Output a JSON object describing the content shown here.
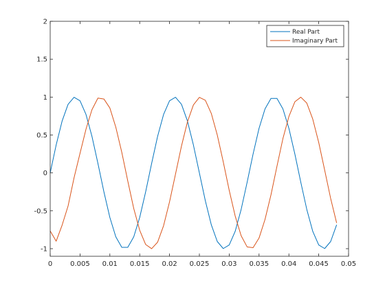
{
  "chart_data": {
    "type": "line",
    "title": "",
    "xlabel": "",
    "ylabel": "",
    "xlim": [
      0,
      0.05
    ],
    "ylim": [
      -1.1,
      2
    ],
    "x_ticks": [
      0,
      0.005,
      0.01,
      0.015,
      0.02,
      0.025,
      0.03,
      0.035,
      0.04,
      0.045,
      0.05
    ],
    "x_tick_labels": [
      "0",
      "0.005",
      "0.01",
      "0.015",
      "0.02",
      "0.025",
      "0.03",
      "0.035",
      "0.04",
      "0.045",
      "0.05"
    ],
    "y_ticks": [
      -1,
      -0.5,
      0,
      0.5,
      1,
      1.5,
      2
    ],
    "y_tick_labels": [
      "-1",
      "-0.5",
      "0",
      "0.5",
      "1",
      "1.5",
      "2"
    ],
    "grid": false,
    "legend_position": "top-right",
    "series": [
      {
        "name": "Real Part",
        "color": "#0072BD",
        "x": [
          0,
          0.001,
          0.002,
          0.003,
          0.004,
          0.005,
          0.006,
          0.007,
          0.008,
          0.009,
          0.01,
          0.011,
          0.012,
          0.013,
          0.014,
          0.015,
          0.016,
          0.017,
          0.018,
          0.019,
          0.02,
          0.021,
          0.022,
          0.023,
          0.024,
          0.025,
          0.026,
          0.027,
          0.028,
          0.029,
          0.03,
          0.031,
          0.032,
          0.033,
          0.034,
          0.035,
          0.036,
          0.037,
          0.038,
          0.039,
          0.04,
          0.041,
          0.042,
          0.043,
          0.044,
          0.045,
          0.046,
          0.047,
          0.048
        ],
        "y": [
          0,
          0.368,
          0.685,
          0.905,
          0.998,
          0.951,
          0.771,
          0.482,
          0.125,
          -0.249,
          -0.588,
          -0.844,
          -0.982,
          -0.982,
          -0.844,
          -0.588,
          -0.249,
          0.125,
          0.482,
          0.771,
          0.951,
          0.998,
          0.905,
          0.685,
          0.368,
          0,
          -0.368,
          -0.685,
          -0.905,
          -0.998,
          -0.951,
          -0.771,
          -0.482,
          -0.125,
          0.249,
          0.588,
          0.844,
          0.982,
          0.982,
          0.844,
          0.588,
          0.249,
          -0.125,
          -0.482,
          -0.771,
          -0.951,
          -0.998,
          -0.905,
          -0.685
        ]
      },
      {
        "name": "Imaginary Part",
        "color": "#D95319",
        "x": [
          0,
          0.001,
          0.002,
          0.003,
          0.004,
          0.005,
          0.006,
          0.007,
          0.008,
          0.009,
          0.01,
          0.011,
          0.012,
          0.013,
          0.014,
          0.015,
          0.016,
          0.017,
          0.018,
          0.019,
          0.02,
          0.021,
          0.022,
          0.023,
          0.024,
          0.025,
          0.026,
          0.027,
          0.028,
          0.029,
          0.03,
          0.031,
          0.032,
          0.033,
          0.034,
          0.035,
          0.036,
          0.037,
          0.038,
          0.039,
          0.04,
          0.041,
          0.042,
          0.043,
          0.044,
          0.045,
          0.046,
          0.047,
          0.048
        ],
        "y": [
          -0.766,
          -0.901,
          -0.689,
          -0.436,
          -0.064,
          0.259,
          0.577,
          0.834,
          0.987,
          0.975,
          0.856,
          0.602,
          0.271,
          -0.106,
          -0.469,
          -0.757,
          -0.945,
          -1.0,
          -0.914,
          -0.697,
          -0.382,
          -0.016,
          0.354,
          0.673,
          0.897,
          0.997,
          0.958,
          0.784,
          0.5,
          0.146,
          -0.23,
          -0.569,
          -0.829,
          -0.976,
          -0.987,
          -0.859,
          -0.614,
          -0.289,
          0.087,
          0.453,
          0.744,
          0.938,
          0.999,
          0.921,
          0.71,
          0.401,
          0.035,
          -0.337,
          -0.66
        ]
      }
    ]
  }
}
